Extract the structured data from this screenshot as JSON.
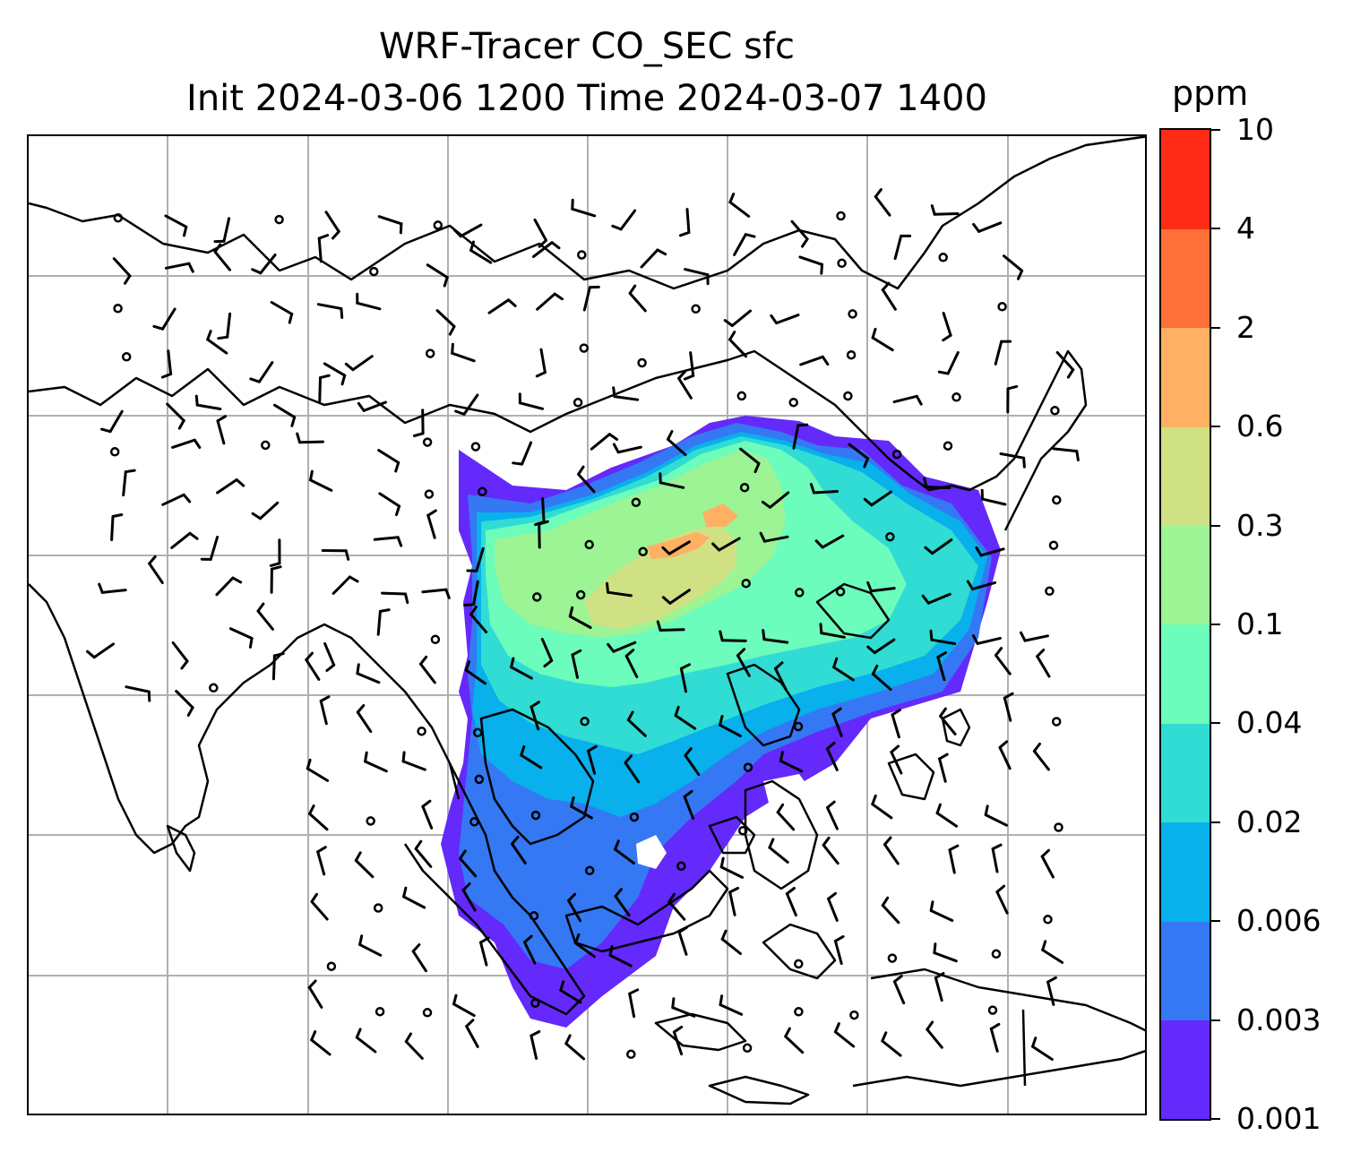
{
  "title": {
    "line1": "WRF-Tracer CO_SEC sfc",
    "line2": "Init 2024-03-06 1200 Time 2024-03-07 1400"
  },
  "colorbar": {
    "unit": "ppm",
    "levels": [
      "0.001",
      "0.003",
      "0.006",
      "0.02",
      "0.04",
      "0.1",
      "0.3",
      "0.6",
      "2",
      "4",
      "10"
    ],
    "colors": [
      "#6429fb",
      "#3478f4",
      "#08b0ec",
      "#30dcd4",
      "#6cfcbc",
      "#9cf494",
      "#d0e184",
      "#ffb062",
      "#ff7038",
      "#ff2b16"
    ]
  },
  "map": {
    "gridlines": true,
    "gridline_color": "#b0b0b0",
    "coastline_color": "#000000",
    "field": "CO_SEC surface concentration",
    "wind_barbs": true
  }
}
